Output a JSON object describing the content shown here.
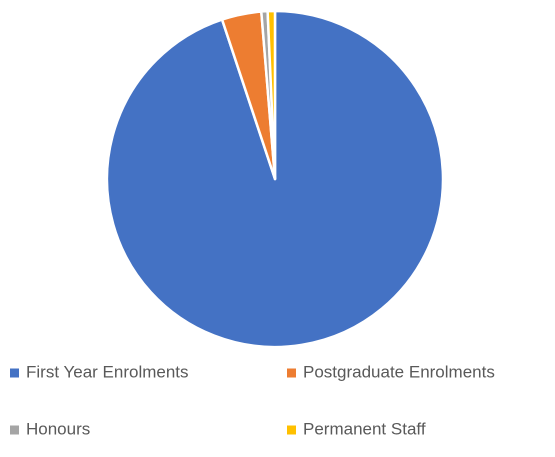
{
  "chart_data": {
    "type": "pie",
    "categories": [
      "First Year Enrolments",
      "Postgraduate Enrolments",
      "Honours",
      "Permanent Staff"
    ],
    "values": [
      94.9,
      3.8,
      0.6,
      0.7
    ],
    "colors": [
      "#4472c4",
      "#ed7d31",
      "#a5a5a5",
      "#ffc000"
    ],
    "legend": "bottom"
  }
}
